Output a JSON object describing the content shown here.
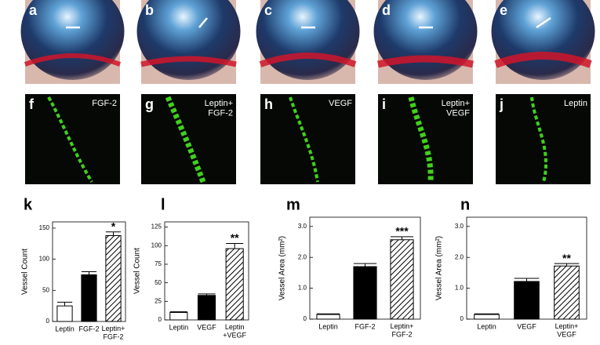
{
  "photo_panels": [
    {
      "label": "a"
    },
    {
      "label": "b"
    },
    {
      "label": "c"
    },
    {
      "label": "d"
    },
    {
      "label": "e"
    }
  ],
  "fluorescence_panels": [
    {
      "label": "f",
      "caption": "FGF-2"
    },
    {
      "label": "g",
      "caption": "Leptin+\nFGF-2"
    },
    {
      "label": "h",
      "caption": "VEGF"
    },
    {
      "label": "i",
      "caption": "Leptin+\nVEGF"
    },
    {
      "label": "j",
      "caption": "Leptin"
    }
  ],
  "chart_data": [
    {
      "type": "bar",
      "panel": "k",
      "y_label": "Vessel Count",
      "categories": [
        "Leptin",
        "FGF-2",
        "Leptin+\nFGF-2"
      ],
      "values": [
        25,
        75,
        138
      ],
      "errors": [
        6,
        5,
        6
      ],
      "fills": [
        "white",
        "black",
        "hatch"
      ],
      "significance": [
        null,
        null,
        "*"
      ],
      "ylim": [
        0,
        160
      ],
      "yticks": [
        0,
        50,
        100,
        150
      ]
    },
    {
      "type": "bar",
      "panel": "l",
      "y_label": "Vessel Count",
      "categories": [
        "Leptin",
        "VEGF",
        "Leptin\n+VEGF"
      ],
      "values": [
        10,
        33,
        96
      ],
      "errors": [
        1,
        2,
        7
      ],
      "fills": [
        "white",
        "black",
        "hatch"
      ],
      "significance": [
        null,
        null,
        "**"
      ],
      "ylim": [
        0,
        132
      ],
      "yticks": [
        0,
        25,
        50,
        75,
        100,
        125
      ]
    },
    {
      "type": "bar",
      "panel": "m",
      "y_label": "Vessel Area (mm²)",
      "categories": [
        "Leptin",
        "FGF-2",
        "Leptin+\nFGF-2"
      ],
      "values": [
        0.15,
        1.7,
        2.57
      ],
      "errors": [
        0.02,
        0.1,
        0.1
      ],
      "fills": [
        "white",
        "black",
        "hatch"
      ],
      "significance": [
        null,
        null,
        "***"
      ],
      "ylim": [
        0,
        3.3
      ],
      "yticks": [
        0,
        {
          "value": 1,
          "label": "1.0"
        },
        {
          "value": 2,
          "label": "2.0"
        },
        {
          "value": 3,
          "label": "3.0"
        }
      ]
    },
    {
      "type": "bar",
      "panel": "n",
      "y_label": "Vessel Area (mm²)",
      "categories": [
        "Leptin",
        "VEGF",
        "Leptin+\nVEGF"
      ],
      "values": [
        0.15,
        1.22,
        1.72
      ],
      "errors": [
        0.02,
        0.1,
        0.08
      ],
      "fills": [
        "white",
        "black",
        "hatch"
      ],
      "significance": [
        null,
        null,
        "**"
      ],
      "ylim": [
        0,
        3.3
      ],
      "yticks": [
        0,
        {
          "value": 1,
          "label": "1.0"
        },
        {
          "value": 2,
          "label": "2.0"
        },
        {
          "value": 3,
          "label": "3.0"
        }
      ]
    }
  ]
}
